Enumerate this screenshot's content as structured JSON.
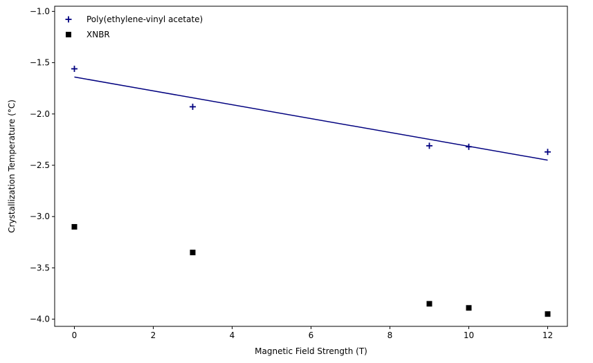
{
  "chart_data": {
    "type": "scatter",
    "title": "",
    "xlabel": "Magnetic Field Strength (T)",
    "ylabel": "Crystallization Temperature (°C)",
    "xlim": [
      -0.5,
      12.5
    ],
    "ylim": [
      -4.07,
      -0.95
    ],
    "xticks": [
      0,
      2,
      4,
      6,
      8,
      10,
      12
    ],
    "yticks": [
      -4.0,
      -3.5,
      -3.0,
      -2.5,
      -2.0,
      -1.5,
      -1.0
    ],
    "xtick_labels": [
      "0",
      "2",
      "4",
      "6",
      "8",
      "10",
      "12"
    ],
    "ytick_labels": [
      "−4.0",
      "−3.5",
      "−3.0",
      "−2.5",
      "−2.0",
      "−1.5",
      "−1.0"
    ],
    "grid": false,
    "legend_position": "top-left",
    "series": [
      {
        "name": "Poly(ethylene-vinyl acetate)",
        "marker": "plus",
        "color": "#00007f",
        "x": [
          0,
          3,
          9,
          10,
          12
        ],
        "y": [
          -1.56,
          -1.93,
          -2.31,
          -2.32,
          -2.37
        ]
      },
      {
        "name": "XNBR",
        "marker": "square",
        "color": "#000000",
        "x": [
          0,
          3,
          9,
          10,
          12
        ],
        "y": [
          -3.1,
          -3.35,
          -3.85,
          -3.89,
          -3.95
        ]
      }
    ],
    "fit_line": {
      "color": "#00007f",
      "x": [
        0,
        12
      ],
      "y": [
        -1.64,
        -2.45
      ]
    }
  }
}
